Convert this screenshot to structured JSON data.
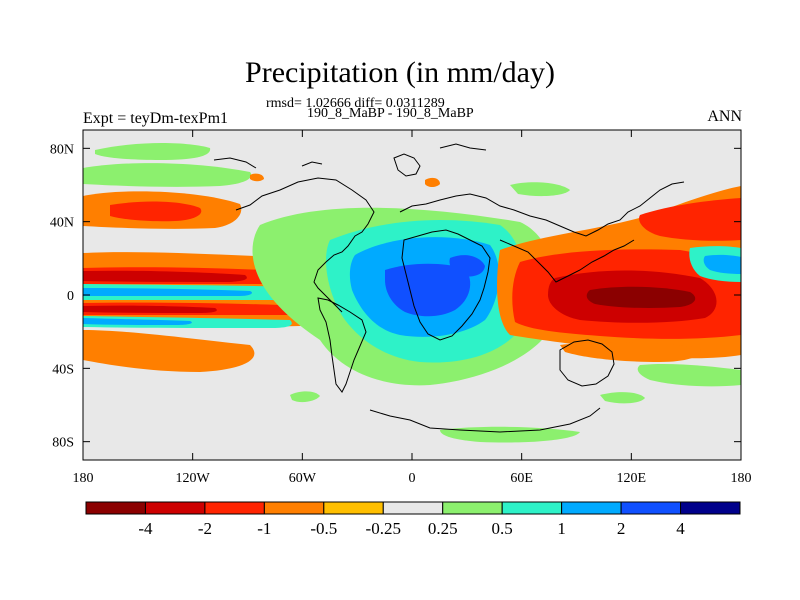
{
  "chart_data": {
    "type": "heatmap",
    "title": "Precipitation (in mm/day)",
    "stats_line": "rmsd= 1.02666 diff= 0.0311289",
    "cases_line": "190_8_MaBP - 190_8_MaBP",
    "left_label": "Expt = teyDm-texPm1",
    "right_label": "ANN",
    "xlim": [
      -180,
      180
    ],
    "ylim": [
      -90,
      90
    ],
    "x_ticks": [
      {
        "value": -180,
        "label": "180"
      },
      {
        "value": -120,
        "label": "120W"
      },
      {
        "value": -60,
        "label": "60W"
      },
      {
        "value": 0,
        "label": "0"
      },
      {
        "value": 60,
        "label": "60E"
      },
      {
        "value": 120,
        "label": "120E"
      },
      {
        "value": 180,
        "label": "180"
      }
    ],
    "y_ticks": [
      {
        "value": 80,
        "label": "80N"
      },
      {
        "value": 40,
        "label": "40N"
      },
      {
        "value": 0,
        "label": "0"
      },
      {
        "value": -40,
        "label": "40S"
      },
      {
        "value": -80,
        "label": "80S"
      }
    ],
    "color_levels": [
      "-4",
      "-2",
      "-1",
      "-0.5",
      "-0.25",
      "0.25",
      "0.5",
      "1",
      "2",
      "4"
    ],
    "colorbar_colors": [
      "#8b0000",
      "#cd0000",
      "#ff2400",
      "#ff7f00",
      "#ffbf00",
      "#e8e8e8",
      "#8cf06e",
      "#2ef2c8",
      "#00aaff",
      "#1050ff",
      "#00008b"
    ],
    "background_color": "#e8e8e8"
  }
}
